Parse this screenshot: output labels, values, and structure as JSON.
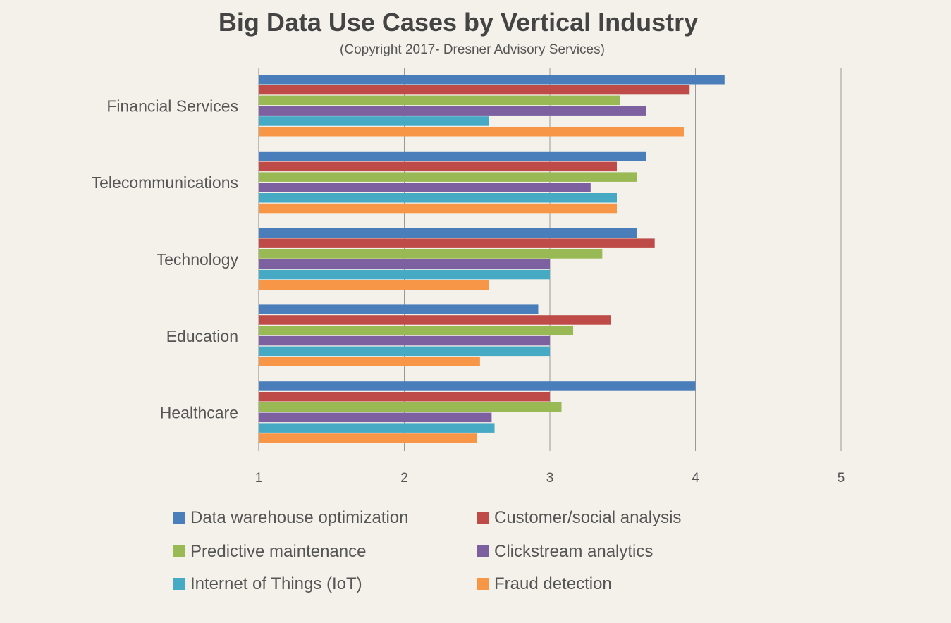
{
  "chart_data": {
    "type": "bar",
    "orientation": "horizontal",
    "title": "Big Data Use Cases by Vertical Industry",
    "subtitle": "(Copyright 2017- Dresner Advisory Services)",
    "categories": [
      "Financial Services",
      "Telecommunications",
      "Technology",
      "Education",
      "Healthcare"
    ],
    "xlim": [
      1,
      5
    ],
    "xticks": [
      1,
      2,
      3,
      4,
      5
    ],
    "grid": true,
    "legend_position": "bottom",
    "series": [
      {
        "name": "Data warehouse optimization",
        "color": "#4a7ebb",
        "values": [
          4.2,
          3.66,
          3.6,
          2.92,
          4.0
        ]
      },
      {
        "name": "Customer/social analysis",
        "color": "#be4b48",
        "values": [
          3.96,
          3.46,
          3.72,
          3.42,
          3.0
        ]
      },
      {
        "name": "Predictive maintenance",
        "color": "#98b954",
        "values": [
          3.48,
          3.6,
          3.36,
          3.16,
          3.08
        ]
      },
      {
        "name": "Clickstream analytics",
        "color": "#7d60a0",
        "values": [
          3.66,
          3.28,
          3.0,
          3.0,
          2.6
        ]
      },
      {
        "name": "Internet of Things (IoT)",
        "color": "#46aac5",
        "values": [
          2.58,
          3.46,
          3.0,
          3.0,
          2.62
        ]
      },
      {
        "name": "Fraud detection",
        "color": "#f79646",
        "values": [
          3.92,
          3.46,
          2.58,
          2.52,
          2.5
        ]
      }
    ]
  }
}
